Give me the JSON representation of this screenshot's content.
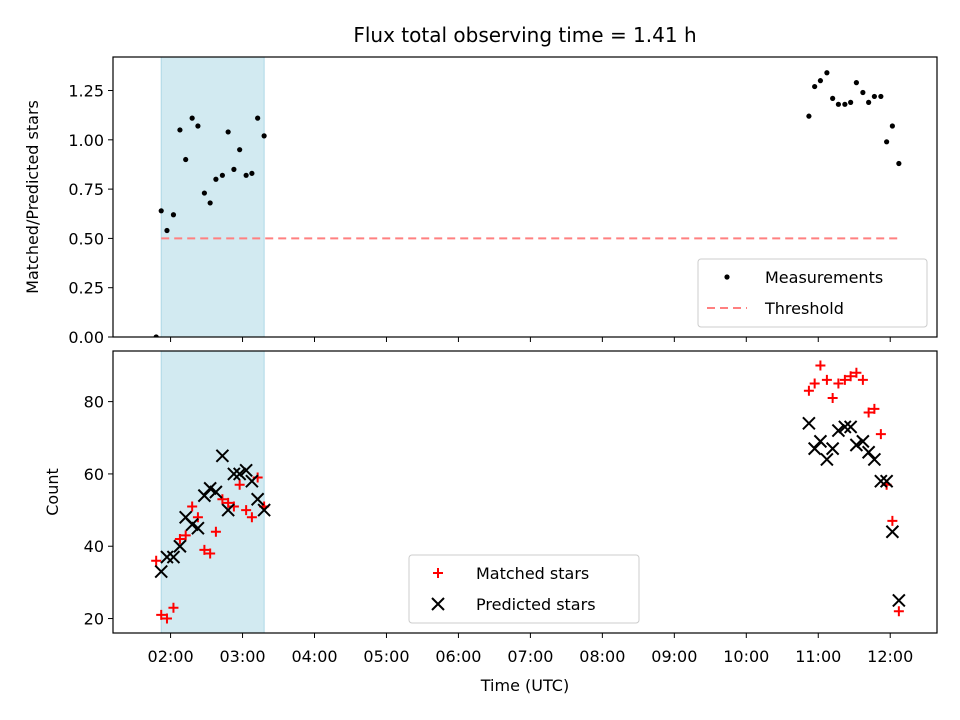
{
  "chart_data": {
    "type": "scatter",
    "title": "Flux total observing time = 1.41 h",
    "xlabel": "Time (UTC)",
    "x_unit": "hours UTC",
    "xlim": [
      1.2,
      12.65
    ],
    "x_ticks": [
      {
        "value": 2,
        "label": "02:00"
      },
      {
        "value": 3,
        "label": "03:00"
      },
      {
        "value": 4,
        "label": "04:00"
      },
      {
        "value": 5,
        "label": "05:00"
      },
      {
        "value": 6,
        "label": "06:00"
      },
      {
        "value": 7,
        "label": "07:00"
      },
      {
        "value": 8,
        "label": "08:00"
      },
      {
        "value": 9,
        "label": "09:00"
      },
      {
        "value": 10,
        "label": "10:00"
      },
      {
        "value": 11,
        "label": "11:00"
      },
      {
        "value": 12,
        "label": "12:00"
      }
    ],
    "colors": {
      "shade": "#add8e6",
      "matched": "#ff0000",
      "predicted": "#000000",
      "threshold": "#ff8080",
      "measurements": "#000000"
    },
    "panels": [
      {
        "ylabel": "Matched/Predicted stars",
        "ylim": [
          0,
          1.42
        ],
        "yticks": [
          {
            "value": 0,
            "label": "0.00"
          },
          {
            "value": 0.25,
            "label": "0.25"
          },
          {
            "value": 0.5,
            "label": "0.50"
          },
          {
            "value": 0.75,
            "label": "0.75"
          },
          {
            "value": 1.0,
            "label": "1.00"
          },
          {
            "value": 1.25,
            "label": "1.25"
          }
        ],
        "shaded_span": [
          1.87,
          3.3
        ],
        "threshold": {
          "name": "Threshold",
          "y": 0.5,
          "x_range": [
            1.87,
            12.1
          ],
          "style": "dashed"
        },
        "legend_position": "lower right",
        "legend": [
          {
            "name": "Measurements",
            "marker": "dot"
          },
          {
            "name": "Threshold",
            "marker": "dashed-line"
          }
        ],
        "series": [
          {
            "name": "Measurements",
            "marker": "dot",
            "x": [
              1.8,
              1.87,
              1.95,
              2.04,
              2.13,
              2.21,
              2.3,
              2.38,
              2.47,
              2.55,
              2.63,
              2.72,
              2.8,
              2.88,
              2.96,
              3.05,
              3.13,
              3.21,
              3.3,
              10.87,
              10.95,
              11.03,
              11.12,
              11.2,
              11.28,
              11.37,
              11.45,
              11.53,
              11.62,
              11.7,
              11.78,
              11.87,
              11.95,
              12.03,
              12.12
            ],
            "y": [
              0.0,
              0.64,
              0.54,
              0.62,
              1.05,
              0.9,
              1.11,
              1.07,
              0.73,
              0.68,
              0.8,
              0.82,
              1.04,
              0.85,
              0.95,
              0.82,
              0.83,
              1.11,
              1.02,
              1.12,
              1.27,
              1.3,
              1.34,
              1.21,
              1.18,
              1.18,
              1.19,
              1.29,
              1.24,
              1.19,
              1.22,
              1.22,
              0.99,
              1.07,
              0.88
            ]
          }
        ]
      },
      {
        "ylabel": "Count",
        "ylim": [
          16,
          94
        ],
        "yticks": [
          {
            "value": 20,
            "label": "20"
          },
          {
            "value": 40,
            "label": "40"
          },
          {
            "value": 60,
            "label": "60"
          },
          {
            "value": 80,
            "label": "80"
          }
        ],
        "shaded_span": [
          1.87,
          3.3
        ],
        "legend_position": "lower center",
        "legend": [
          {
            "name": "Matched stars",
            "marker": "plus"
          },
          {
            "name": "Predicted stars",
            "marker": "x"
          }
        ],
        "series": [
          {
            "name": "Matched stars",
            "marker": "plus",
            "x": [
              1.8,
              1.87,
              1.95,
              2.04,
              2.13,
              2.21,
              2.3,
              2.38,
              2.47,
              2.55,
              2.63,
              2.72,
              2.8,
              2.88,
              2.96,
              3.05,
              3.13,
              3.21,
              3.3,
              10.87,
              10.95,
              11.03,
              11.12,
              11.2,
              11.28,
              11.37,
              11.45,
              11.53,
              11.62,
              11.7,
              11.78,
              11.87,
              11.95,
              12.03,
              12.12
            ],
            "y": [
              36,
              21,
              20,
              23,
              42,
              43,
              51,
              48,
              39,
              38,
              44,
              53,
              52,
              51,
              57,
              50,
              48,
              59,
              51,
              83,
              85,
              90,
              86,
              81,
              85,
              86,
              87,
              88,
              86,
              77,
              78,
              71,
              57,
              47,
              22
            ]
          },
          {
            "name": "Predicted stars",
            "marker": "x",
            "x": [
              1.87,
              1.95,
              2.04,
              2.13,
              2.21,
              2.3,
              2.38,
              2.47,
              2.55,
              2.63,
              2.72,
              2.8,
              2.88,
              2.96,
              3.05,
              3.13,
              3.21,
              3.3,
              10.87,
              10.95,
              11.03,
              11.12,
              11.2,
              11.28,
              11.37,
              11.45,
              11.53,
              11.62,
              11.7,
              11.78,
              11.87,
              11.95,
              12.03,
              12.12
            ],
            "y": [
              33,
              37,
              37,
              40,
              48,
              46,
              45,
              54,
              56,
              55,
              65,
              50,
              60,
              60,
              61,
              58,
              53,
              50,
              74,
              67,
              69,
              64,
              67,
              72,
              73,
              73,
              68,
              69,
              66,
              64,
              58,
              58,
              44,
              25
            ]
          }
        ]
      }
    ]
  }
}
